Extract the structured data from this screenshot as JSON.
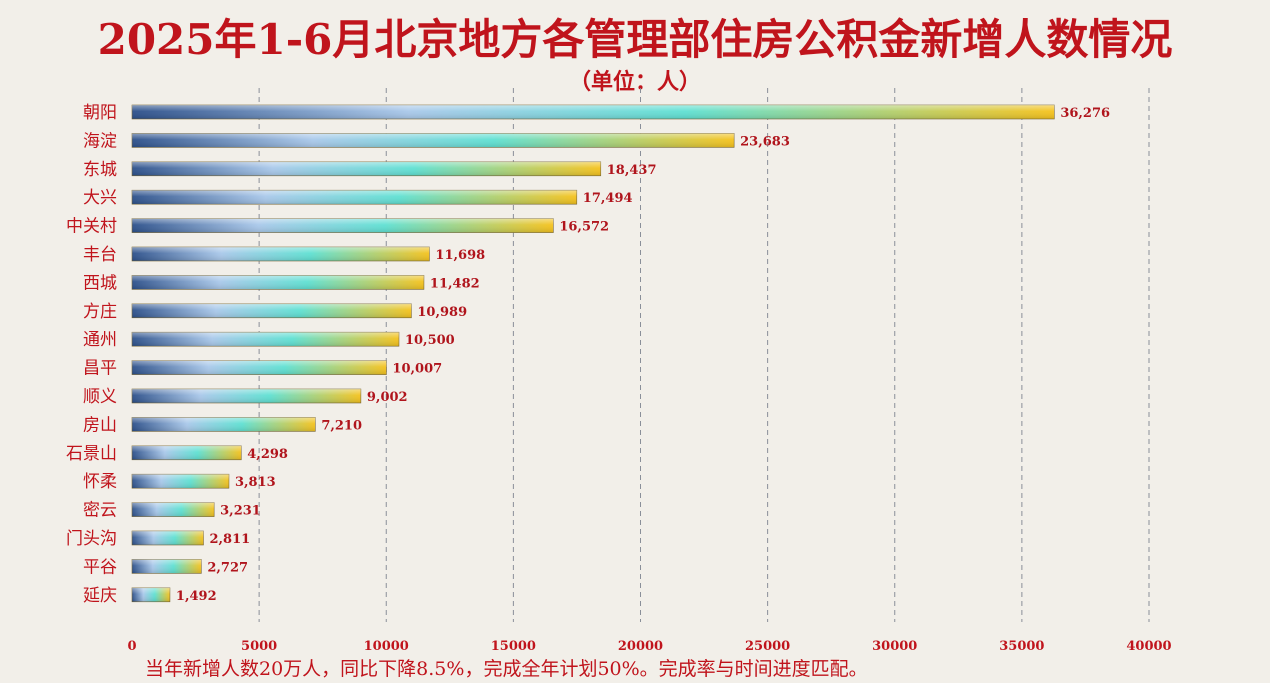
{
  "title": "2025年1-6月北京地方各管理部住房公积金新增人数情况",
  "subtitle": "（单位：人）",
  "footnote": "当年新增人数20万人，同比下降8.5%，完成全年计划50%。完成率与时间进度匹配。",
  "colors": {
    "text": "#c0141c",
    "background": "#f2efe9",
    "bar_gradient": [
      "#2b4f8a",
      "#a9c8ea",
      "#5fe0d2",
      "#f5c21c"
    ],
    "grid": "#8a8f99"
  },
  "chart_data": {
    "type": "bar",
    "orientation": "horizontal",
    "categories": [
      "朝阳",
      "海淀",
      "东城",
      "大兴",
      "中关村",
      "丰台",
      "西城",
      "方庄",
      "通州",
      "昌平",
      "顺义",
      "房山",
      "石景山",
      "怀柔",
      "密云",
      "门头沟",
      "平谷",
      "延庆"
    ],
    "values": [
      36276,
      23683,
      18437,
      17494,
      16572,
      11698,
      11482,
      10989,
      10500,
      10007,
      9002,
      7210,
      4298,
      3813,
      3231,
      2811,
      2727,
      1492
    ],
    "value_labels": [
      "36,276",
      "23,683",
      "18,437",
      "17,494",
      "16,572",
      "11,698",
      "11,482",
      "10,989",
      "10,500",
      "10,007",
      "9,002",
      "7,210",
      "4,298",
      "3,813",
      "3,231",
      "2,811",
      "2,727",
      "1,492"
    ],
    "xticks": [
      "0",
      "5000",
      "10000",
      "15000",
      "20000",
      "25000",
      "30000",
      "35000",
      "40000"
    ],
    "xlim": [
      0,
      40000
    ],
    "grid": "vertical dashed",
    "legend": "none"
  }
}
